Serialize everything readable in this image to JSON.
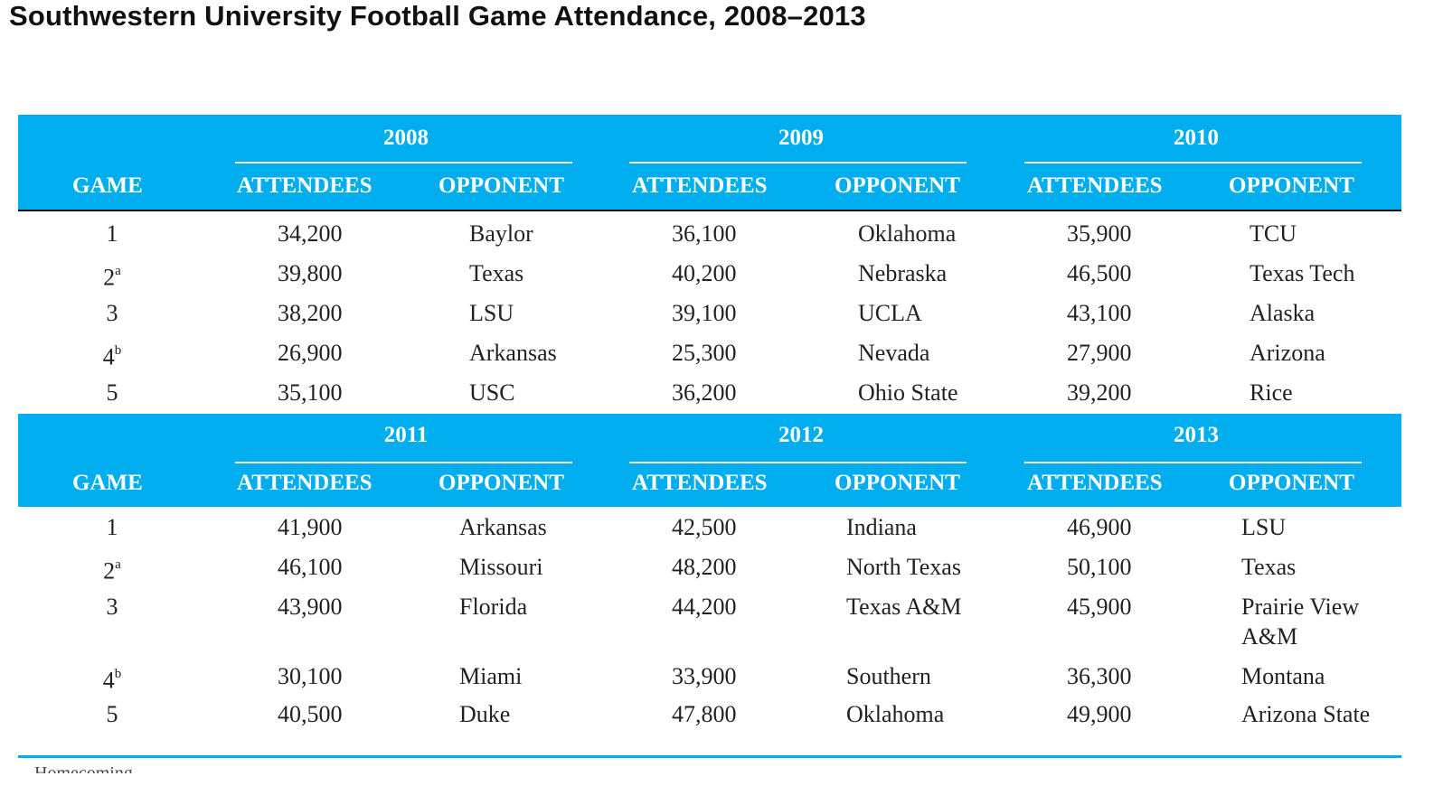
{
  "title": "Southwestern University Football Game Attendance, 2008–2013",
  "colors": {
    "band": "#00aeef",
    "text": "#222222"
  },
  "headers": {
    "game": "GAME",
    "attendees": "ATTENDEES",
    "opponent": "OPPONENT"
  },
  "panels": [
    {
      "years": [
        "2008",
        "2009",
        "2010"
      ],
      "rows": [
        {
          "game": "1",
          "mark": "",
          "cells": [
            [
              "34,200",
              "Baylor"
            ],
            [
              "36,100",
              "Oklahoma"
            ],
            [
              "35,900",
              "TCU"
            ]
          ]
        },
        {
          "game": "2",
          "mark": "a",
          "cells": [
            [
              "39,800",
              "Texas"
            ],
            [
              "40,200",
              "Nebraska"
            ],
            [
              "46,500",
              "Texas Tech"
            ]
          ]
        },
        {
          "game": "3",
          "mark": "",
          "cells": [
            [
              "38,200",
              "LSU"
            ],
            [
              "39,100",
              "UCLA"
            ],
            [
              "43,100",
              "Alaska"
            ]
          ]
        },
        {
          "game": "4",
          "mark": "b",
          "cells": [
            [
              "26,900",
              "Arkansas"
            ],
            [
              "25,300",
              "Nevada"
            ],
            [
              "27,900",
              "Arizona"
            ]
          ]
        },
        {
          "game": "5",
          "mark": "",
          "cells": [
            [
              "35,100",
              "USC"
            ],
            [
              "36,200",
              "Ohio State"
            ],
            [
              "39,200",
              "Rice"
            ]
          ]
        }
      ]
    },
    {
      "years": [
        "2011",
        "2012",
        "2013"
      ],
      "rows": [
        {
          "game": "1",
          "mark": "",
          "cells": [
            [
              "41,900",
              "Arkansas"
            ],
            [
              "42,500",
              "Indiana"
            ],
            [
              "46,900",
              "LSU"
            ]
          ]
        },
        {
          "game": "2",
          "mark": "a",
          "cells": [
            [
              "46,100",
              "Missouri"
            ],
            [
              "48,200",
              "North Texas"
            ],
            [
              "50,100",
              "Texas"
            ]
          ]
        },
        {
          "game": "3",
          "mark": "",
          "cells": [
            [
              "43,900",
              "Florida"
            ],
            [
              "44,200",
              "Texas A&M"
            ],
            [
              "45,900",
              "Prairie View A&M"
            ]
          ]
        },
        {
          "game": "4",
          "mark": "b",
          "cells": [
            [
              "30,100",
              "Miami"
            ],
            [
              "33,900",
              "Southern"
            ],
            [
              "36,300",
              "Montana"
            ]
          ]
        },
        {
          "game": "5",
          "mark": "",
          "cells": [
            [
              "40,500",
              "Duke"
            ],
            [
              "47,800",
              "Oklahoma"
            ],
            [
              "49,900",
              "Arizona State"
            ]
          ]
        }
      ]
    }
  ],
  "footnote_stub": "Homecoming"
}
